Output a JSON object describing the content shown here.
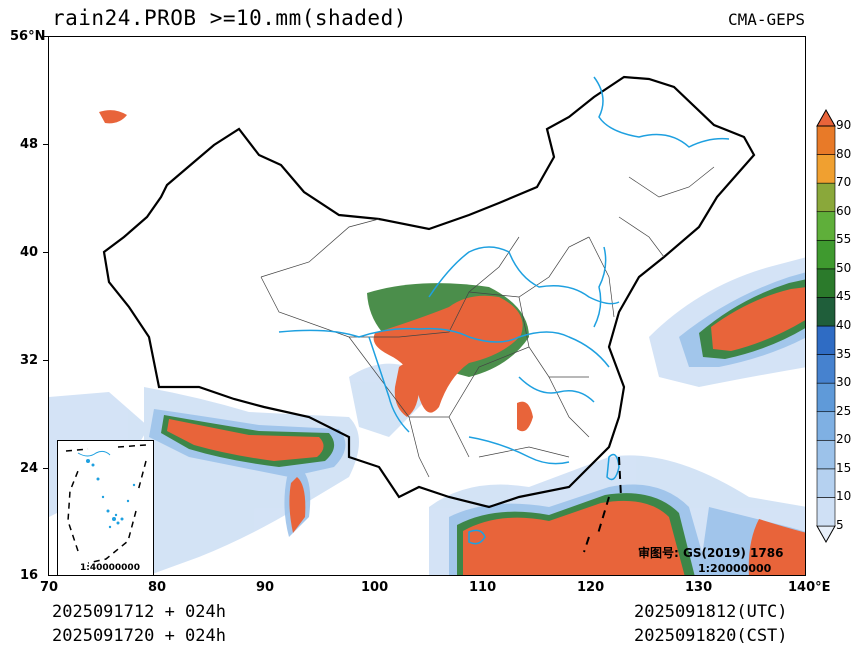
{
  "title": "rain24.PROB >=10.mm(shaded)",
  "source": "CMA-GEPS",
  "lat_labels": [
    "56°N",
    "48",
    "40",
    "32",
    "24",
    "16"
  ],
  "lon_labels": [
    "70",
    "80",
    "90",
    "100",
    "110",
    "120",
    "130",
    "140°E"
  ],
  "footer": {
    "left_line1": "2025091712 + 024h",
    "left_line2": "2025091720 + 024h",
    "right_line1": "2025091812(UTC)",
    "right_line2": "2025091820(CST)"
  },
  "approval_text": "审图号: GS(2019) 1786",
  "scale_text": "1:20000000",
  "inset_scale_text": "1:40000000",
  "colorbar": {
    "levels": [
      "5",
      "10",
      "15",
      "20",
      "25",
      "30",
      "35",
      "40",
      "45",
      "50",
      "55",
      "60",
      "70",
      "80",
      "90"
    ],
    "colors": [
      "#e8f0fa",
      "#cfe0f5",
      "#b5d1f0",
      "#9cc2ea",
      "#7fb0e3",
      "#5f9ad9",
      "#4682cf",
      "#2f6cc4",
      "#1f5e3a",
      "#2b7a2b",
      "#3f9a2f",
      "#5faf3a",
      "#8aa83a",
      "#f0a030",
      "#e87a28",
      "#e8643a"
    ]
  },
  "colors": {
    "river": "#1ea0e0",
    "high_prob": "#e8643a"
  }
}
